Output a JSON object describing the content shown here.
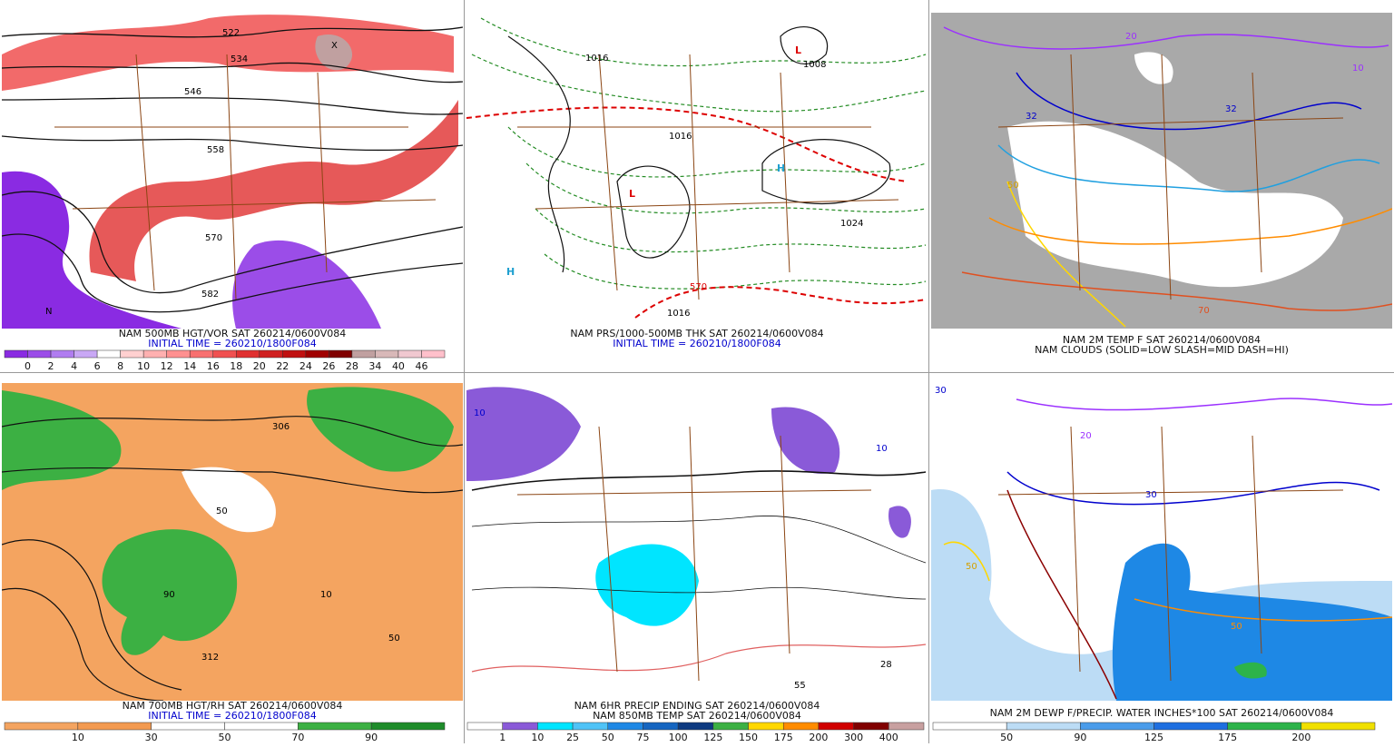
{
  "panels": [
    {
      "caption": [
        "NAM 500MB HGT/VOR SAT 260214/0600V084",
        "INITIAL TIME = 260210/1800F084"
      ],
      "map_labels": [
        "522",
        "534",
        "546",
        "558",
        "570",
        "582",
        "X",
        "N"
      ],
      "colorbar": {
        "labels": [
          "0",
          "2",
          "4",
          "6",
          "8",
          "10",
          "12",
          "14",
          "16",
          "18",
          "20",
          "22",
          "24",
          "26",
          "28",
          "34",
          "40",
          "46"
        ],
        "colors": [
          "#8a2be2",
          "#9b4de8",
          "#b07cf0",
          "#c9a8f5",
          "#ffffff",
          "#ffd0d0",
          "#ffb0b0",
          "#ff9090",
          "#f87070",
          "#f05050",
          "#e03030",
          "#d02020",
          "#c01010",
          "#a00000",
          "#800000",
          "#c0a0a0",
          "#d8b8b8",
          "#f0c8d0",
          "#ffc0cb"
        ]
      }
    },
    {
      "caption": [
        "NAM PRS/1000-500MB THK SAT 260214/0600V084",
        "INITIAL TIME = 260210/1800F084"
      ],
      "map_labels": [
        "1016",
        "1008",
        "1024",
        "1016",
        "1016",
        "H",
        "H",
        "L",
        "L",
        "570"
      ]
    },
    {
      "caption": [
        "NAM 2M TEMP F SAT 260214/0600V084",
        "NAM CLOUDS (SOLID=LOW SLASH=MID DASH=HI)"
      ],
      "map_labels": [
        "32",
        "32",
        "20",
        "50",
        "70",
        "10"
      ]
    },
    {
      "caption": [
        "NAM 700MB HGT/RH SAT 260214/0600V084",
        "INITIAL TIME = 260210/1800F084"
      ],
      "map_labels": [
        "50",
        "90",
        "10",
        "50",
        "312",
        "306"
      ],
      "colorbar": {
        "labels": [
          "10",
          "30",
          "50",
          "70",
          "90"
        ],
        "colors": [
          "#f4a460",
          "#f39a50",
          "#ffffff",
          "#ffffff",
          "#3cb043",
          "#1e8c2a"
        ]
      }
    },
    {
      "caption": [
        "NAM 6HR PRECIP ENDING SAT 260214/0600V084",
        "NAM 850MB TEMP SAT 260214/0600V084"
      ],
      "map_labels": [
        "10",
        "55",
        "28",
        "10"
      ],
      "colorbar": {
        "labels": [
          "1",
          "10",
          "25",
          "50",
          "75",
          "100",
          "125",
          "150",
          "175",
          "200",
          "300",
          "400"
        ],
        "colors": [
          "#ffffff",
          "#8a5ad8",
          "#00e5ff",
          "#4fc3f7",
          "#1e88e5",
          "#1565c0",
          "#0d3a80",
          "#3cb043",
          "#ffd700",
          "#ff8c00",
          "#d00000",
          "#800000",
          "#c8a0a0"
        ]
      }
    },
    {
      "caption": [
        "NAM 2M DEWP F/PRECIP. WATER INCHES*100 SAT 260214/0600V084"
      ],
      "map_labels": [
        "30",
        "30",
        "20",
        "50",
        "50"
      ],
      "colorbar": {
        "labels": [
          "50",
          "90",
          "125",
          "175",
          "200"
        ],
        "colors": [
          "#ffffff",
          "#bcdcf5",
          "#4a9cea",
          "#1e6fe0",
          "#2db34a",
          "#f0e000"
        ]
      }
    }
  ]
}
